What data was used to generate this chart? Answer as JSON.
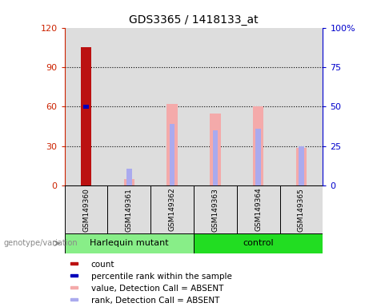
{
  "title": "GDS3365 / 1418133_at",
  "samples": [
    "GSM149360",
    "GSM149361",
    "GSM149362",
    "GSM149363",
    "GSM149364",
    "GSM149365"
  ],
  "group_labels": [
    "Harlequin mutant",
    "control"
  ],
  "group_split": 3,
  "bar_colors": {
    "count": "#BB1111",
    "percentile": "#0000BB",
    "value_absent": "#F4AAAA",
    "rank_absent": "#AAAAEE"
  },
  "count_values": [
    105,
    0,
    0,
    0,
    0,
    0
  ],
  "percentile_values": [
    60,
    0,
    0,
    0,
    0,
    0
  ],
  "value_absent": [
    0,
    5,
    62,
    55,
    60,
    29
  ],
  "rank_absent": [
    0,
    13,
    47,
    42,
    43,
    30
  ],
  "ylim_left": [
    0,
    120
  ],
  "ylim_right": [
    0,
    100
  ],
  "yticks_left": [
    0,
    30,
    60,
    90,
    120
  ],
  "yticks_right": [
    0,
    25,
    50,
    75,
    100
  ],
  "yticklabels_left": [
    "0",
    "30",
    "60",
    "90",
    "120"
  ],
  "yticklabels_right": [
    "0",
    "25",
    "50",
    "75",
    "100%"
  ],
  "left_axis_color": "#CC2200",
  "right_axis_color": "#0000CC",
  "sample_bg": "#DDDDDD",
  "plot_bg": "#FFFFFF",
  "legend_items": [
    {
      "label": "count",
      "color": "#BB1111"
    },
    {
      "label": "percentile rank within the sample",
      "color": "#0000BB"
    },
    {
      "label": "value, Detection Call = ABSENT",
      "color": "#F4AAAA"
    },
    {
      "label": "rank, Detection Call = ABSENT",
      "color": "#AAAAEE"
    }
  ],
  "genotype_label": "genotype/variation",
  "harlequin_color": "#88EE88",
  "control_color": "#22DD22"
}
